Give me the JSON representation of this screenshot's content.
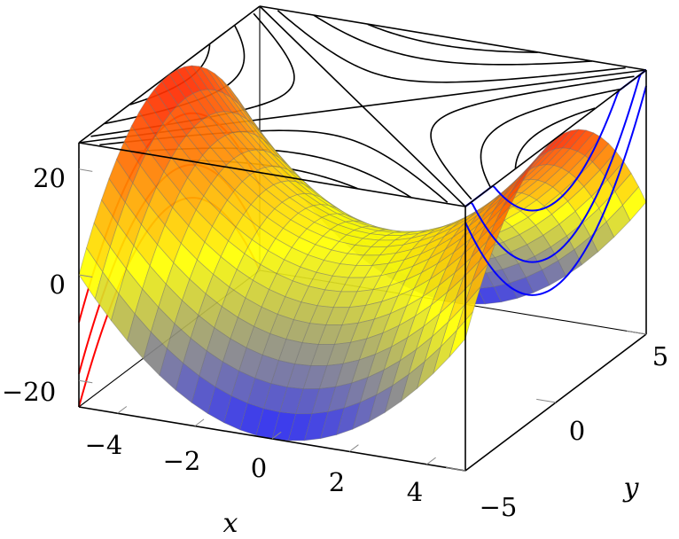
{
  "chart_data": {
    "type": "surface3d",
    "title": "",
    "function": "x^2 - y^2",
    "xlabel": "x",
    "ylabel": "y",
    "zlabel": "",
    "xlim": [
      -5,
      5
    ],
    "ylim": [
      -5,
      5
    ],
    "zlim": [
      -25,
      25
    ],
    "x_ticks": [
      -4,
      -2,
      0,
      2,
      4
    ],
    "x_tick_labels": [
      "−4",
      "−2",
      "0",
      "2",
      "4"
    ],
    "y_ticks": [
      -5,
      0,
      5
    ],
    "y_tick_labels": [
      "−5",
      "0",
      "5"
    ],
    "z_ticks": [
      -20,
      0,
      20
    ],
    "z_tick_labels": [
      "−20",
      "0",
      "20"
    ],
    "mesh_samples": 25,
    "colormap": [
      "#1a1aff",
      "#ffff00",
      "#ff1a00"
    ],
    "projections": {
      "top_contours": {
        "wall": "z-max",
        "levels": [
          -20,
          -12,
          -4,
          4,
          12,
          20
        ],
        "color": "#000000"
      },
      "x_wall_curves": {
        "wall": "x-max",
        "x_values": [
          0,
          2.5,
          4
        ],
        "color": "#ff0000"
      },
      "y_wall_curves": {
        "wall": "y-max",
        "y_values": [
          0,
          2.5,
          4
        ],
        "color": "#0000ff"
      }
    },
    "grid": false,
    "box": "full"
  }
}
